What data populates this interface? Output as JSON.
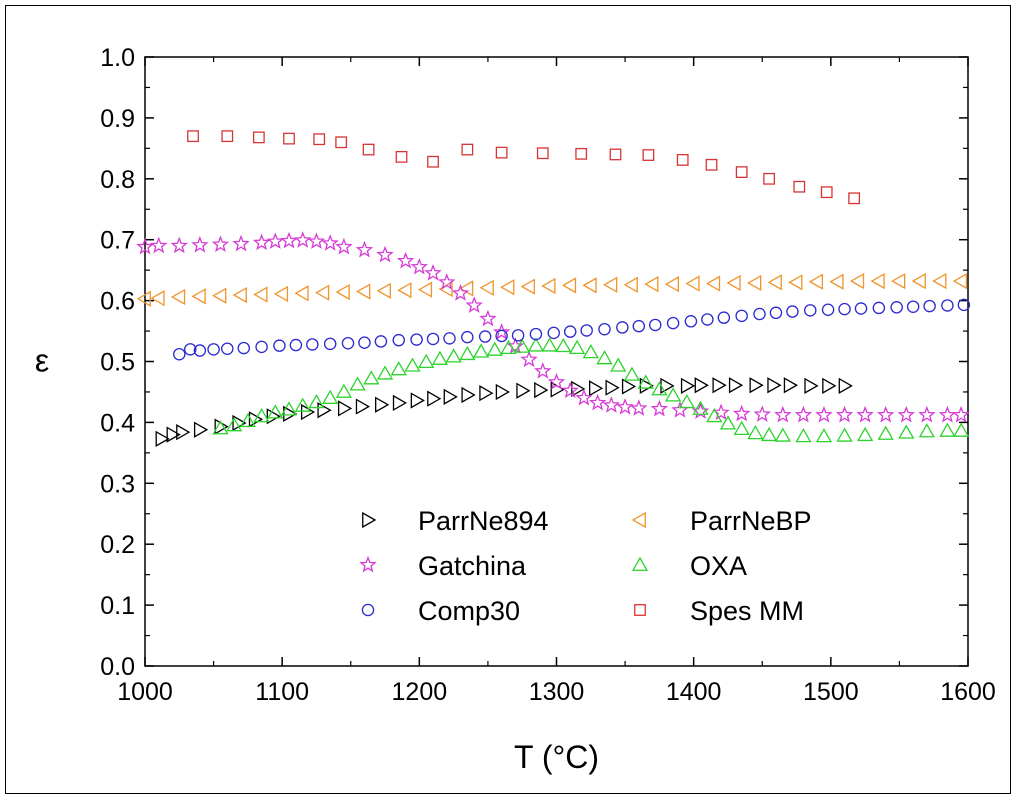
{
  "chart_data": {
    "type": "scatter",
    "xlabel": "T (°C)",
    "ylabel": "ε",
    "xlim": [
      1000,
      1600
    ],
    "ylim": [
      0.0,
      1.0
    ],
    "xticks": [
      "1000",
      "1100",
      "1200",
      "1300",
      "1400",
      "1500",
      "1600"
    ],
    "yticks": [
      "0.0",
      "0.1",
      "0.2",
      "0.3",
      "0.4",
      "0.5",
      "0.6",
      "0.7",
      "0.8",
      "0.9",
      "1.0"
    ],
    "legend_position": "bottom-center",
    "series": [
      {
        "name": "ParrNe894",
        "marker": "triangle-right",
        "color": "#000000",
        "points": [
          [
            1012,
            0.373
          ],
          [
            1020,
            0.38
          ],
          [
            1027,
            0.384
          ],
          [
            1040,
            0.388
          ],
          [
            1055,
            0.393
          ],
          [
            1068,
            0.399
          ],
          [
            1080,
            0.405
          ],
          [
            1093,
            0.41
          ],
          [
            1105,
            0.414
          ],
          [
            1118,
            0.417
          ],
          [
            1130,
            0.42
          ],
          [
            1145,
            0.423
          ],
          [
            1158,
            0.426
          ],
          [
            1172,
            0.429
          ],
          [
            1185,
            0.432
          ],
          [
            1198,
            0.436
          ],
          [
            1210,
            0.439
          ],
          [
            1222,
            0.442
          ],
          [
            1235,
            0.445
          ],
          [
            1248,
            0.448
          ],
          [
            1260,
            0.45
          ],
          [
            1275,
            0.452
          ],
          [
            1288,
            0.453
          ],
          [
            1300,
            0.454
          ],
          [
            1315,
            0.455
          ],
          [
            1328,
            0.456
          ],
          [
            1340,
            0.457
          ],
          [
            1352,
            0.459
          ],
          [
            1365,
            0.46
          ],
          [
            1380,
            0.46
          ],
          [
            1395,
            0.46
          ],
          [
            1405,
            0.461
          ],
          [
            1418,
            0.461
          ],
          [
            1430,
            0.461
          ],
          [
            1445,
            0.461
          ],
          [
            1458,
            0.461
          ],
          [
            1470,
            0.461
          ],
          [
            1485,
            0.46
          ],
          [
            1498,
            0.46
          ],
          [
            1510,
            0.46
          ]
        ]
      },
      {
        "name": "ParrNeBP",
        "marker": "triangle-left",
        "color": "#f0932b",
        "points": [
          [
            1000,
            0.603
          ],
          [
            1010,
            0.604
          ],
          [
            1025,
            0.606
          ],
          [
            1040,
            0.607
          ],
          [
            1055,
            0.608
          ],
          [
            1070,
            0.609
          ],
          [
            1085,
            0.61
          ],
          [
            1100,
            0.611
          ],
          [
            1115,
            0.612
          ],
          [
            1130,
            0.613
          ],
          [
            1145,
            0.614
          ],
          [
            1160,
            0.615
          ],
          [
            1175,
            0.616
          ],
          [
            1190,
            0.617
          ],
          [
            1205,
            0.618
          ],
          [
            1220,
            0.619
          ],
          [
            1235,
            0.62
          ],
          [
            1250,
            0.621
          ],
          [
            1265,
            0.622
          ],
          [
            1280,
            0.623
          ],
          [
            1295,
            0.624
          ],
          [
            1310,
            0.625
          ],
          [
            1325,
            0.625
          ],
          [
            1340,
            0.626
          ],
          [
            1355,
            0.626
          ],
          [
            1370,
            0.627
          ],
          [
            1385,
            0.627
          ],
          [
            1400,
            0.628
          ],
          [
            1415,
            0.628
          ],
          [
            1430,
            0.629
          ],
          [
            1445,
            0.629
          ],
          [
            1460,
            0.63
          ],
          [
            1475,
            0.63
          ],
          [
            1490,
            0.631
          ],
          [
            1505,
            0.631
          ],
          [
            1520,
            0.632
          ],
          [
            1535,
            0.632
          ],
          [
            1550,
            0.632
          ],
          [
            1565,
            0.632
          ],
          [
            1580,
            0.632
          ],
          [
            1595,
            0.632
          ]
        ]
      },
      {
        "name": "Gatchina",
        "marker": "star",
        "color": "#d63ad6",
        "points": [
          [
            1000,
            0.688
          ],
          [
            1010,
            0.69
          ],
          [
            1025,
            0.69
          ],
          [
            1040,
            0.691
          ],
          [
            1055,
            0.692
          ],
          [
            1070,
            0.693
          ],
          [
            1085,
            0.695
          ],
          [
            1095,
            0.697
          ],
          [
            1105,
            0.698
          ],
          [
            1115,
            0.699
          ],
          [
            1125,
            0.697
          ],
          [
            1135,
            0.694
          ],
          [
            1145,
            0.688
          ],
          [
            1160,
            0.683
          ],
          [
            1175,
            0.675
          ],
          [
            1190,
            0.665
          ],
          [
            1200,
            0.655
          ],
          [
            1210,
            0.645
          ],
          [
            1220,
            0.63
          ],
          [
            1230,
            0.612
          ],
          [
            1240,
            0.592
          ],
          [
            1250,
            0.57
          ],
          [
            1260,
            0.548
          ],
          [
            1270,
            0.525
          ],
          [
            1280,
            0.503
          ],
          [
            1290,
            0.484
          ],
          [
            1300,
            0.466
          ],
          [
            1310,
            0.452
          ],
          [
            1320,
            0.44
          ],
          [
            1330,
            0.432
          ],
          [
            1340,
            0.428
          ],
          [
            1350,
            0.425
          ],
          [
            1360,
            0.423
          ],
          [
            1375,
            0.422
          ],
          [
            1390,
            0.42
          ],
          [
            1405,
            0.418
          ],
          [
            1420,
            0.416
          ],
          [
            1435,
            0.414
          ],
          [
            1450,
            0.413
          ],
          [
            1465,
            0.412
          ],
          [
            1480,
            0.412
          ],
          [
            1495,
            0.412
          ],
          [
            1510,
            0.412
          ],
          [
            1525,
            0.412
          ],
          [
            1540,
            0.412
          ],
          [
            1555,
            0.412
          ],
          [
            1570,
            0.412
          ],
          [
            1585,
            0.412
          ],
          [
            1595,
            0.412
          ]
        ]
      },
      {
        "name": "OXA",
        "marker": "triangle-up",
        "color": "#2bd32b",
        "points": [
          [
            1055,
            0.39
          ],
          [
            1065,
            0.395
          ],
          [
            1075,
            0.402
          ],
          [
            1085,
            0.41
          ],
          [
            1095,
            0.416
          ],
          [
            1105,
            0.421
          ],
          [
            1115,
            0.427
          ],
          [
            1125,
            0.433
          ],
          [
            1135,
            0.44
          ],
          [
            1145,
            0.45
          ],
          [
            1155,
            0.462
          ],
          [
            1165,
            0.472
          ],
          [
            1175,
            0.48
          ],
          [
            1185,
            0.487
          ],
          [
            1195,
            0.493
          ],
          [
            1205,
            0.499
          ],
          [
            1215,
            0.504
          ],
          [
            1225,
            0.508
          ],
          [
            1235,
            0.512
          ],
          [
            1245,
            0.516
          ],
          [
            1255,
            0.519
          ],
          [
            1265,
            0.522
          ],
          [
            1275,
            0.524
          ],
          [
            1285,
            0.526
          ],
          [
            1295,
            0.526
          ],
          [
            1305,
            0.525
          ],
          [
            1315,
            0.522
          ],
          [
            1325,
            0.515
          ],
          [
            1335,
            0.505
          ],
          [
            1345,
            0.493
          ],
          [
            1355,
            0.478
          ],
          [
            1365,
            0.465
          ],
          [
            1375,
            0.454
          ],
          [
            1385,
            0.444
          ],
          [
            1395,
            0.433
          ],
          [
            1405,
            0.422
          ],
          [
            1415,
            0.41
          ],
          [
            1425,
            0.398
          ],
          [
            1435,
            0.389
          ],
          [
            1445,
            0.382
          ],
          [
            1455,
            0.379
          ],
          [
            1465,
            0.378
          ],
          [
            1480,
            0.377
          ],
          [
            1495,
            0.377
          ],
          [
            1510,
            0.378
          ],
          [
            1525,
            0.379
          ],
          [
            1540,
            0.381
          ],
          [
            1555,
            0.383
          ],
          [
            1570,
            0.385
          ],
          [
            1585,
            0.386
          ],
          [
            1595,
            0.386
          ]
        ]
      },
      {
        "name": "Comp30",
        "marker": "circle",
        "color": "#2a2ad0",
        "points": [
          [
            1025,
            0.512
          ],
          [
            1033,
            0.52
          ],
          [
            1040,
            0.518
          ],
          [
            1050,
            0.52
          ],
          [
            1060,
            0.521
          ],
          [
            1072,
            0.522
          ],
          [
            1085,
            0.524
          ],
          [
            1098,
            0.526
          ],
          [
            1110,
            0.527
          ],
          [
            1122,
            0.528
          ],
          [
            1135,
            0.529
          ],
          [
            1148,
            0.53
          ],
          [
            1160,
            0.531
          ],
          [
            1172,
            0.533
          ],
          [
            1185,
            0.535
          ],
          [
            1198,
            0.536
          ],
          [
            1210,
            0.537
          ],
          [
            1222,
            0.538
          ],
          [
            1235,
            0.54
          ],
          [
            1248,
            0.541
          ],
          [
            1260,
            0.542
          ],
          [
            1272,
            0.543
          ],
          [
            1285,
            0.545
          ],
          [
            1298,
            0.547
          ],
          [
            1310,
            0.549
          ],
          [
            1322,
            0.551
          ],
          [
            1335,
            0.553
          ],
          [
            1348,
            0.556
          ],
          [
            1360,
            0.558
          ],
          [
            1372,
            0.56
          ],
          [
            1385,
            0.563
          ],
          [
            1398,
            0.566
          ],
          [
            1410,
            0.569
          ],
          [
            1422,
            0.572
          ],
          [
            1435,
            0.575
          ],
          [
            1448,
            0.578
          ],
          [
            1460,
            0.58
          ],
          [
            1472,
            0.582
          ],
          [
            1485,
            0.584
          ],
          [
            1498,
            0.585
          ],
          [
            1510,
            0.586
          ],
          [
            1522,
            0.587
          ],
          [
            1535,
            0.588
          ],
          [
            1548,
            0.589
          ],
          [
            1560,
            0.59
          ],
          [
            1572,
            0.591
          ],
          [
            1585,
            0.592
          ],
          [
            1597,
            0.593
          ]
        ]
      },
      {
        "name": "Spes MM",
        "marker": "square",
        "color": "#d63434",
        "points": [
          [
            1035,
            0.87
          ],
          [
            1060,
            0.87
          ],
          [
            1083,
            0.868
          ],
          [
            1105,
            0.866
          ],
          [
            1127,
            0.865
          ],
          [
            1143,
            0.86
          ],
          [
            1163,
            0.848
          ],
          [
            1187,
            0.836
          ],
          [
            1210,
            0.828
          ],
          [
            1235,
            0.848
          ],
          [
            1260,
            0.843
          ],
          [
            1290,
            0.842
          ],
          [
            1318,
            0.841
          ],
          [
            1343,
            0.84
          ],
          [
            1367,
            0.839
          ],
          [
            1392,
            0.831
          ],
          [
            1413,
            0.823
          ],
          [
            1435,
            0.811
          ],
          [
            1455,
            0.8
          ],
          [
            1477,
            0.787
          ],
          [
            1497,
            0.778
          ],
          [
            1517,
            0.768
          ]
        ]
      }
    ]
  }
}
